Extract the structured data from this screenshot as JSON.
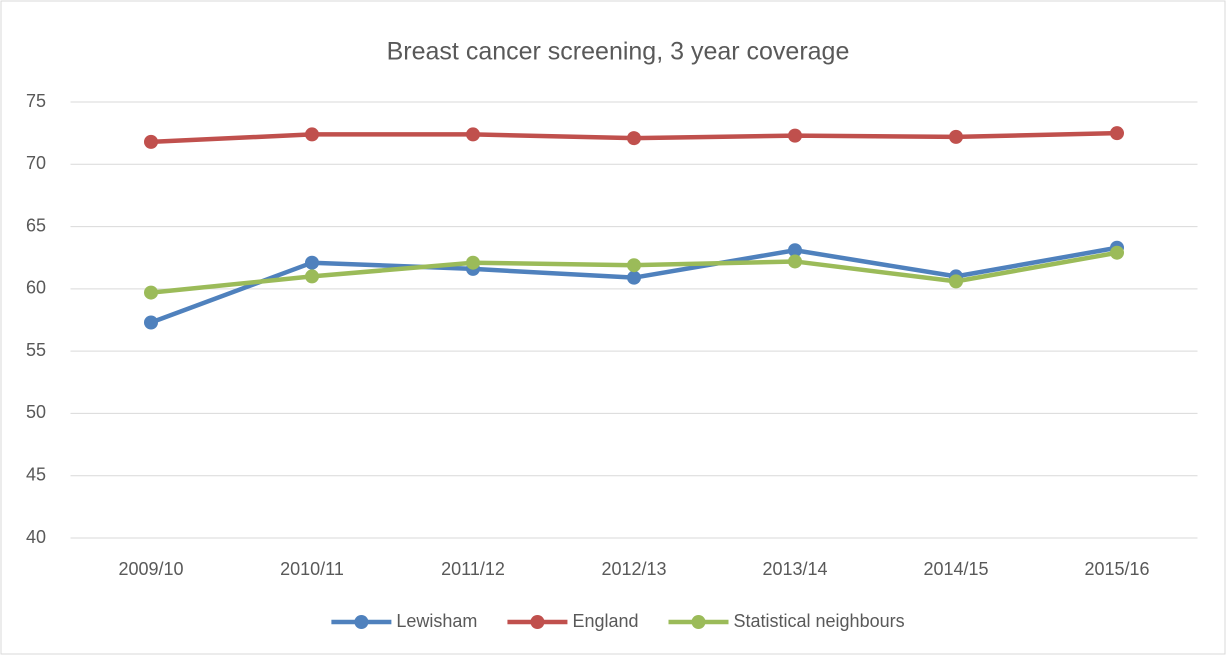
{
  "chart_data": {
    "type": "line",
    "title": "Breast cancer screening, 3 year coverage",
    "categories": [
      "2009/10",
      "2010/11",
      "2011/12",
      "2012/13",
      "2013/14",
      "2014/15",
      "2015/16"
    ],
    "series": [
      {
        "name": "Lewisham",
        "color": "#4f81bd",
        "values": [
          57.3,
          62.1,
          61.6,
          60.9,
          63.1,
          61.0,
          63.3
        ]
      },
      {
        "name": "England",
        "color": "#c0504d",
        "values": [
          71.8,
          72.4,
          72.4,
          72.1,
          72.3,
          72.2,
          72.5
        ]
      },
      {
        "name": "Statistical neighbours",
        "color": "#9bbb59",
        "values": [
          59.7,
          61.0,
          62.1,
          61.9,
          62.2,
          60.6,
          62.9
        ]
      }
    ],
    "ylim": [
      40,
      75
    ],
    "yticks": [
      40,
      45,
      50,
      55,
      60,
      65,
      70,
      75
    ],
    "grid": true,
    "legend": "bottom"
  }
}
